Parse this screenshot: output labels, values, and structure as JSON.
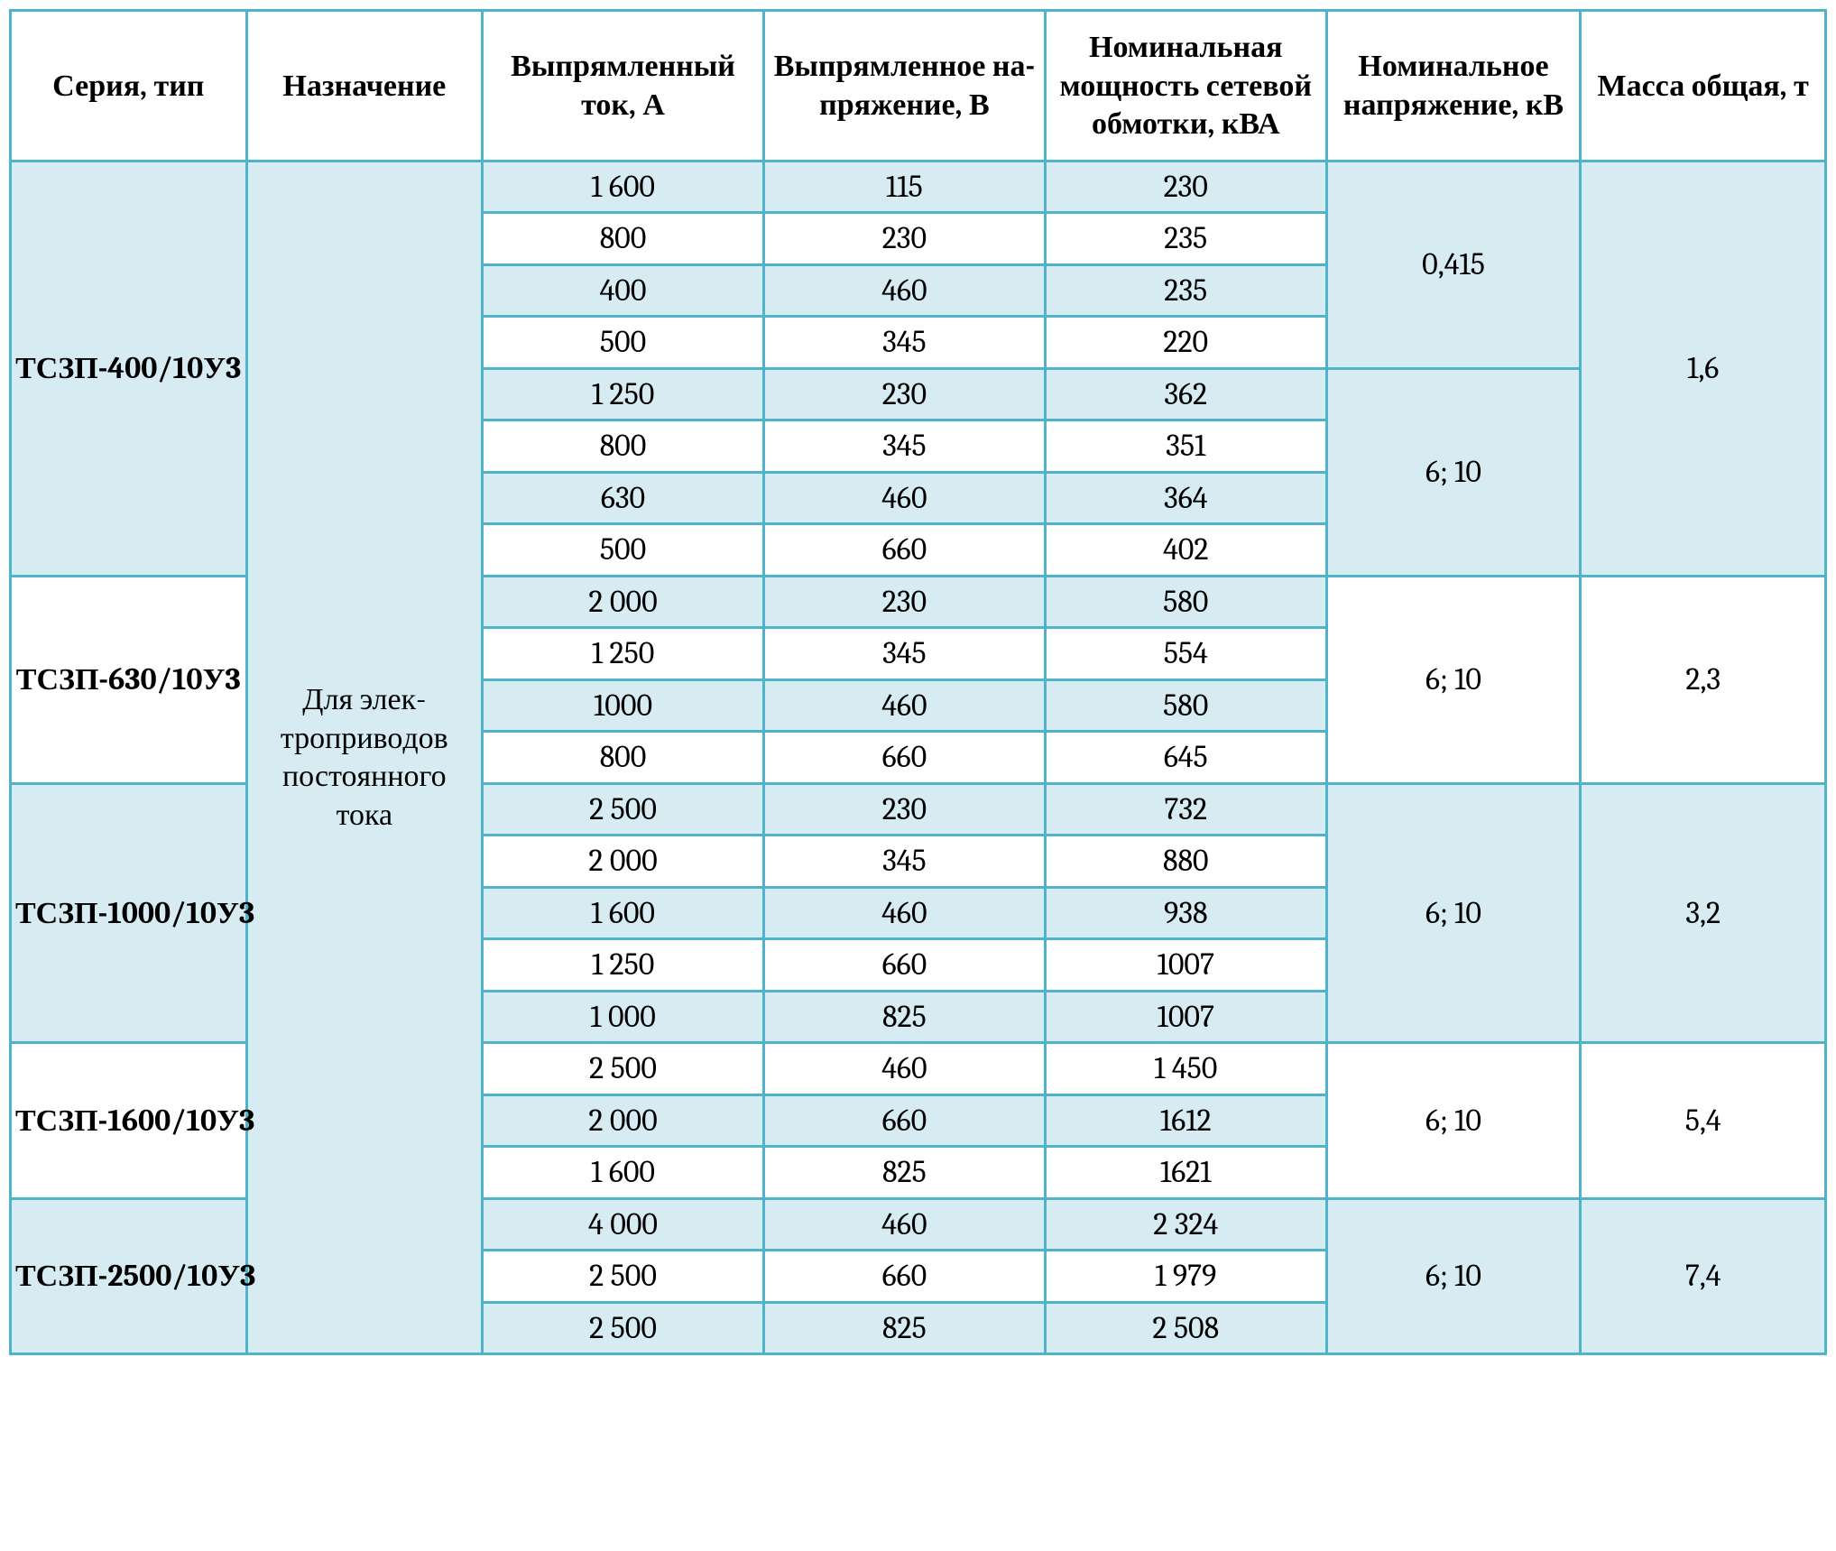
{
  "colors": {
    "border": "#4fb4c9",
    "tint": "#d6ecf2",
    "white": "#ffffff"
  },
  "headers": {
    "c1": "Серия, тип",
    "c2": "Назначе­ние",
    "c3": "Выпрям­ленный ток, А",
    "c4": "Выпрям­ленное на­пряжение, В",
    "c5": "Номи­нальная мощность сетевой обмотки, кВА",
    "c6": "Номи­нальное напряже­ние, кВ",
    "c7": "Масса общая, т"
  },
  "purpose": "Для элек­троприво­дов посто­янного тока",
  "series": {
    "s1": "ТСЗП-400/10У3",
    "s2": "ТСЗП-630/10У3",
    "s3": "ТСЗП-1000/10У3",
    "s4": "ТСЗП-1600/10У3",
    "s5": "ТСЗП-2500/10У3"
  },
  "voltage": {
    "v0415": "0,415",
    "v610": "6; 10"
  },
  "mass": {
    "m1": "1,6",
    "m2": "2,3",
    "m3": "3,2",
    "m4": "5,4",
    "m5": "7,4"
  },
  "rows": {
    "r1": {
      "a": "1 600",
      "b": "115",
      "c": "230"
    },
    "r2": {
      "a": "800",
      "b": "230",
      "c": "235"
    },
    "r3": {
      "a": "400",
      "b": "460",
      "c": "235"
    },
    "r4": {
      "a": "500",
      "b": "345",
      "c": "220"
    },
    "r5": {
      "a": "1 250",
      "b": "230",
      "c": "362"
    },
    "r6": {
      "a": "800",
      "b": "345",
      "c": "351"
    },
    "r7": {
      "a": "630",
      "b": "460",
      "c": "364"
    },
    "r8": {
      "a": "500",
      "b": "660",
      "c": "402"
    },
    "r9": {
      "a": "2 000",
      "b": "230",
      "c": "580"
    },
    "r10": {
      "a": "1 250",
      "b": "345",
      "c": "554"
    },
    "r11": {
      "a": "1000",
      "b": "460",
      "c": "580"
    },
    "r12": {
      "a": "800",
      "b": "660",
      "c": "645"
    },
    "r13": {
      "a": "2 500",
      "b": "230",
      "c": "732"
    },
    "r14": {
      "a": "2 000",
      "b": "345",
      "c": "880"
    },
    "r15": {
      "a": "1 600",
      "b": "460",
      "c": "938"
    },
    "r16": {
      "a": "1 250",
      "b": "660",
      "c": "1007"
    },
    "r17": {
      "a": "1 000",
      "b": "825",
      "c": "1007"
    },
    "r18": {
      "a": "2 500",
      "b": "460",
      "c": "1 450"
    },
    "r19": {
      "a": "2 000",
      "b": "660",
      "c": "1612"
    },
    "r20": {
      "a": "1 600",
      "b": "825",
      "c": "1621"
    },
    "r21": {
      "a": "4 000",
      "b": "460",
      "c": "2 324"
    },
    "r22": {
      "a": "2 500",
      "b": "660",
      "c": "1 979"
    },
    "r23": {
      "a": "2 500",
      "b": "825",
      "c": "2 508"
    }
  }
}
